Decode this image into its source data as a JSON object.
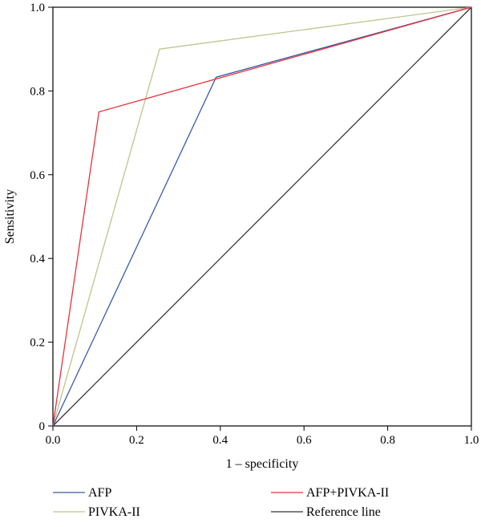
{
  "chart_data": {
    "type": "line",
    "xlabel": "1 – specificity",
    "ylabel": "Sensitivity",
    "xlim": [
      0,
      1
    ],
    "ylim": [
      0,
      1
    ],
    "x_ticks": [
      "0.0",
      "0.2",
      "0.4",
      "0.6",
      "0.8",
      "1.0"
    ],
    "x_tick_values": [
      0,
      0.2,
      0.4,
      0.6,
      0.8,
      1.0
    ],
    "y_ticks": [
      "0",
      "0.2",
      "0.4",
      "0.6",
      "0.8",
      "1.0"
    ],
    "y_tick_values": [
      0,
      0.2,
      0.4,
      0.6,
      0.8,
      1.0
    ],
    "grid": false,
    "legend_position": "bottom",
    "series": [
      {
        "name": "AFP",
        "color": "#3a5aa8",
        "points": [
          [
            0,
            0
          ],
          [
            0.39,
            0.833
          ],
          [
            1,
            1
          ]
        ]
      },
      {
        "name": "AFP+PIVKA-II",
        "color": "#e8313a",
        "points": [
          [
            0,
            0
          ],
          [
            0.11,
            0.75
          ],
          [
            1,
            1
          ]
        ]
      },
      {
        "name": "PIVKA-II",
        "color": "#bfc48e",
        "points": [
          [
            0,
            0
          ],
          [
            0.255,
            0.9
          ],
          [
            1,
            1
          ]
        ]
      },
      {
        "name": "Reference line",
        "color": "#333333",
        "points": [
          [
            0,
            0
          ],
          [
            1,
            1
          ]
        ]
      }
    ]
  }
}
